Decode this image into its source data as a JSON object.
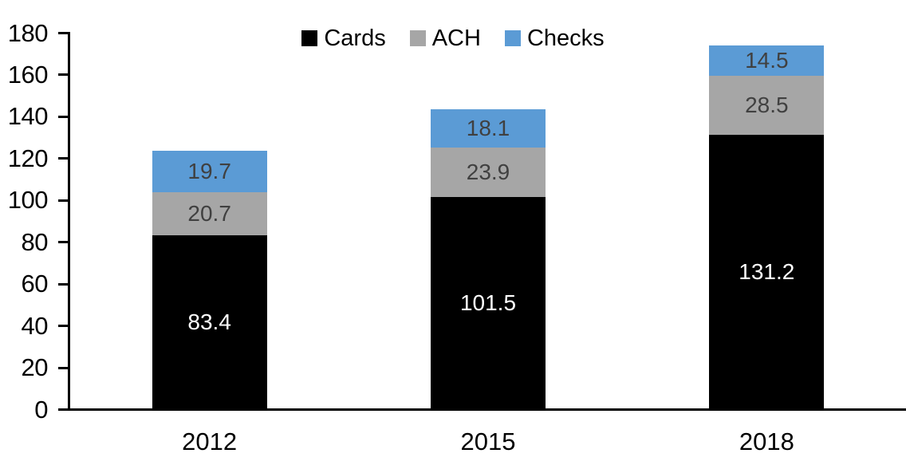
{
  "chart_data": {
    "type": "bar",
    "stacked": true,
    "title": "",
    "xlabel": "",
    "ylabel": "",
    "categories": [
      "2012",
      "2015",
      "2018"
    ],
    "series": [
      {
        "name": "Cards",
        "color": "#000000",
        "label_color": "#ffffff",
        "values": [
          83.4,
          101.5,
          131.2
        ]
      },
      {
        "name": "ACH",
        "color": "#a6a6a6",
        "label_color": "#404040",
        "values": [
          20.7,
          23.9,
          28.5
        ]
      },
      {
        "name": "Checks",
        "color": "#5b9bd5",
        "label_color": "#404040",
        "values": [
          19.7,
          18.1,
          14.5
        ]
      }
    ],
    "ylim": [
      0,
      180
    ],
    "yticks": [
      0,
      20,
      40,
      60,
      80,
      100,
      120,
      140,
      160,
      180
    ],
    "grid": false,
    "legend_position": "top",
    "axis_color": "#000000"
  }
}
